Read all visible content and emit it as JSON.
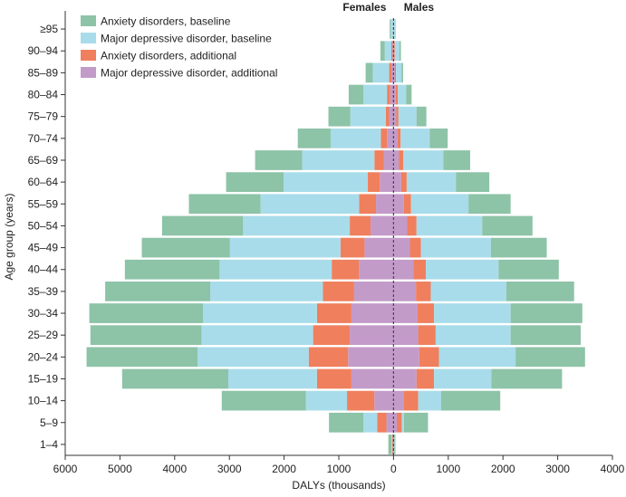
{
  "chart_data": {
    "type": "bar",
    "orientation": "horizontal-pyramid",
    "stacked": true,
    "xlabel": "DALYs (thousands)",
    "ylabel": "Age group (years)",
    "side_labels": {
      "left": "Females",
      "right": "Males"
    },
    "xlim": [
      -6000,
      4000
    ],
    "xticks": [
      -6000,
      -5000,
      -4000,
      -3000,
      -2000,
      -1000,
      0,
      1000,
      2000,
      3000,
      4000
    ],
    "xtick_labels": [
      "6000",
      "5000",
      "4000",
      "3000",
      "2000",
      "1000",
      "0",
      "1000",
      "2000",
      "3000",
      "4000"
    ],
    "categories": [
      "≥95",
      "90–94",
      "85–89",
      "80–84",
      "75–79",
      "70–74",
      "65–69",
      "60–64",
      "55–59",
      "50–54",
      "45–49",
      "40–44",
      "35–39",
      "30–34",
      "25–29",
      "20–24",
      "15–19",
      "10–14",
      "5–9",
      "1–4"
    ],
    "series": [
      {
        "name": "Major depressive disorder, additional",
        "color": "#c39bc9",
        "female": [
          5,
          20,
          40,
          60,
          80,
          120,
          180,
          250,
          320,
          420,
          530,
          630,
          720,
          770,
          800,
          830,
          770,
          350,
          130,
          10
        ],
        "male": [
          3,
          15,
          25,
          40,
          50,
          70,
          100,
          140,
          190,
          250,
          300,
          360,
          410,
          440,
          450,
          470,
          420,
          180,
          60,
          5
        ]
      },
      {
        "name": "Anxiety disorders, additional",
        "color": "#f07f5d",
        "female": [
          5,
          20,
          40,
          60,
          60,
          110,
          170,
          220,
          310,
          380,
          440,
          500,
          570,
          630,
          670,
          720,
          630,
          500,
          170,
          15
        ],
        "male": [
          3,
          10,
          20,
          40,
          40,
          60,
          80,
          100,
          130,
          170,
          200,
          230,
          270,
          300,
          320,
          360,
          320,
          270,
          90,
          5
        ]
      },
      {
        "name": "Major depressive disorder, baseline",
        "color": "#a8dcea",
        "female": [
          40,
          120,
          300,
          430,
          650,
          920,
          1320,
          1540,
          1800,
          1950,
          2020,
          2050,
          2060,
          2080,
          2040,
          2030,
          1620,
          750,
          250,
          10
        ],
        "male": [
          20,
          80,
          100,
          150,
          330,
          530,
          730,
          900,
          1050,
          1200,
          1280,
          1330,
          1380,
          1400,
          1370,
          1400,
          1050,
          420,
          40,
          5
        ]
      },
      {
        "name": "Anxiety disorders, baseline",
        "color": "#8dc3a7",
        "female": [
          20,
          80,
          130,
          270,
          400,
          600,
          860,
          1050,
          1310,
          1480,
          1610,
          1730,
          1920,
          2080,
          2030,
          2030,
          1940,
          1540,
          630,
          60
        ],
        "male": [
          10,
          30,
          30,
          100,
          180,
          330,
          490,
          610,
          770,
          920,
          1020,
          1100,
          1240,
          1310,
          1280,
          1270,
          1290,
          1080,
          440,
          20
        ]
      }
    ],
    "legend": {
      "position": "top-left",
      "order": [
        "Anxiety disorders, baseline",
        "Major depressive disorder, baseline",
        "Anxiety disorders, additional",
        "Major depressive disorder, additional"
      ]
    },
    "zero_line": "dashed"
  }
}
